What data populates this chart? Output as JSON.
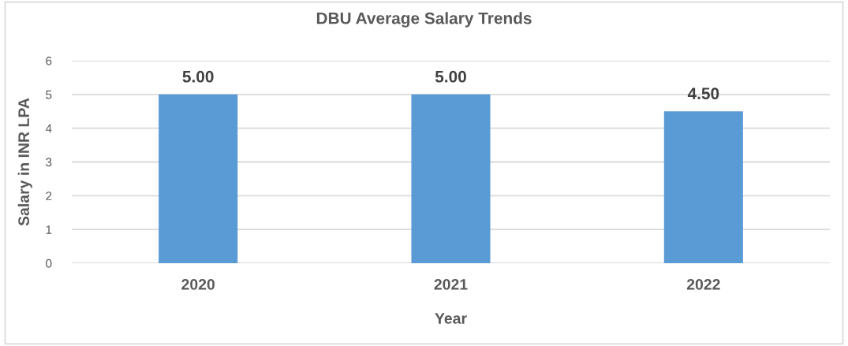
{
  "chart_data": {
    "type": "bar",
    "title": "DBU Average Salary Trends",
    "xlabel": "Year",
    "ylabel": "Salary in INR LPA",
    "categories": [
      "2020",
      "2021",
      "2022"
    ],
    "values": [
      5,
      5,
      4.5
    ],
    "color": "#5b9bd5",
    "value_labels": [
      "5.00",
      "5.00",
      "4.50"
    ],
    "ylim": [
      0,
      6
    ],
    "yticks": [
      0,
      1,
      2,
      3,
      4,
      5,
      6
    ],
    "grid": "y",
    "legend": false
  }
}
